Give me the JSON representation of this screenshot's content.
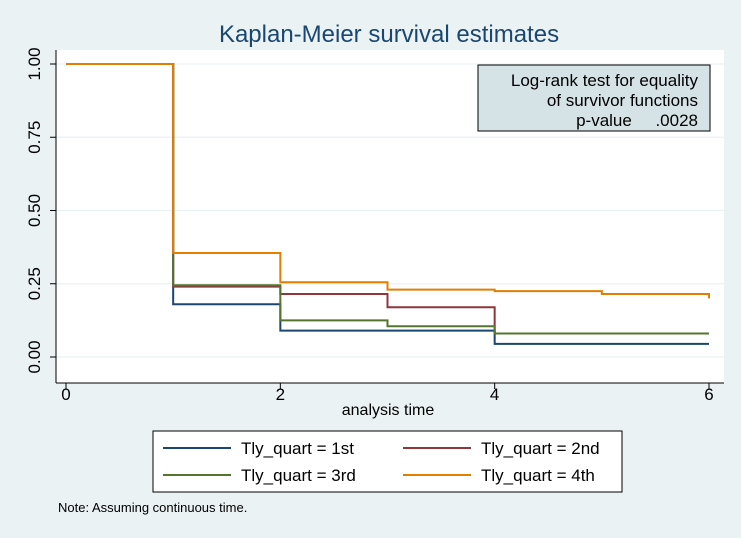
{
  "chart_data": {
    "type": "line",
    "step": true,
    "title": "Kaplan-Meier survival estimates",
    "xlabel": "analysis time",
    "ylabel": "",
    "xlim": [
      0,
      6
    ],
    "ylim": [
      0,
      1
    ],
    "xticks": [
      0,
      2,
      4,
      6
    ],
    "xtick_labels": [
      "0",
      "2",
      "4",
      "6"
    ],
    "yticks": [
      0,
      0.25,
      0.5,
      0.75,
      1
    ],
    "ytick_labels": [
      "0.00",
      "0.25",
      "0.50",
      "0.75",
      "1.00"
    ],
    "grid": true,
    "legend_position": "bottom",
    "series": [
      {
        "name": "Tly_quart = 1st",
        "color": "#1a476f",
        "x": [
          0,
          1,
          2,
          3,
          4,
          6
        ],
        "y": [
          1.0,
          0.18,
          0.09,
          0.09,
          0.045,
          0.045
        ]
      },
      {
        "name": "Tly_quart = 2nd",
        "color": "#90353b",
        "x": [
          0,
          1,
          2,
          3,
          4,
          6
        ],
        "y": [
          1.0,
          0.24,
          0.215,
          0.17,
          0.08,
          0.08
        ]
      },
      {
        "name": "Tly_quart = 3rd",
        "color": "#55752f",
        "x": [
          0,
          1,
          2,
          3,
          4,
          6
        ],
        "y": [
          1.0,
          0.245,
          0.125,
          0.105,
          0.08,
          0.08
        ]
      },
      {
        "name": "Tly_quart = 4th",
        "color": "#e37e00",
        "x": [
          0,
          1,
          2,
          3,
          4,
          5,
          6,
          6
        ],
        "y": [
          1.0,
          0.355,
          0.255,
          0.23,
          0.225,
          0.215,
          0.215,
          0.2
        ]
      }
    ],
    "annotation": {
      "lines": [
        "Log-rank test for equality",
        "of survivor functions",
        "p-value     .0028"
      ]
    },
    "note": "Note: Assuming continuous time."
  }
}
